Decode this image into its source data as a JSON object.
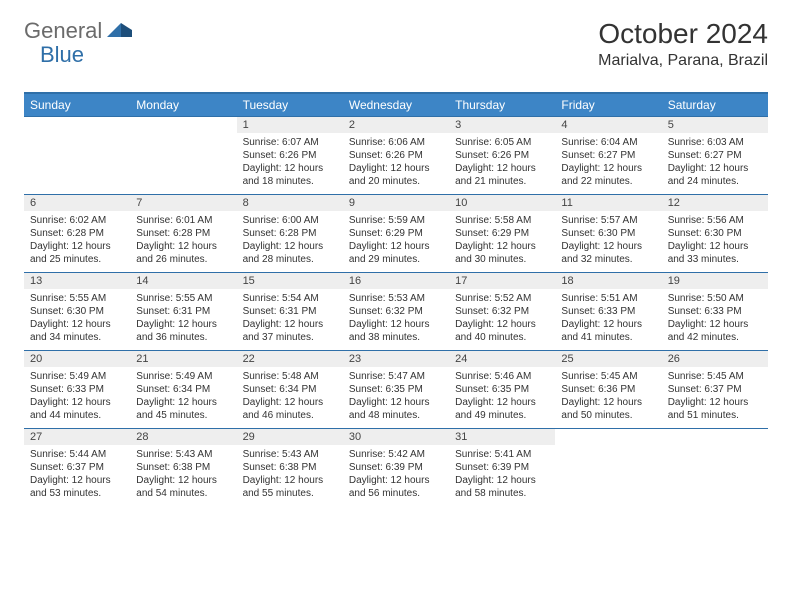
{
  "logo": {
    "general": "General",
    "blue": "Blue"
  },
  "title": "October 2024",
  "location": "Marialva, Parana, Brazil",
  "dayHeaders": [
    "Sunday",
    "Monday",
    "Tuesday",
    "Wednesday",
    "Thursday",
    "Friday",
    "Saturday"
  ],
  "colors": {
    "headerBg": "#3d85c6",
    "headerBorder": "#2f6fa8",
    "dayNumBg": "#eeeeee",
    "text": "#333333"
  },
  "weeks": [
    [
      null,
      null,
      {
        "n": "1",
        "sunrise": "6:07 AM",
        "sunset": "6:26 PM",
        "daylight": "12 hours and 18 minutes."
      },
      {
        "n": "2",
        "sunrise": "6:06 AM",
        "sunset": "6:26 PM",
        "daylight": "12 hours and 20 minutes."
      },
      {
        "n": "3",
        "sunrise": "6:05 AM",
        "sunset": "6:26 PM",
        "daylight": "12 hours and 21 minutes."
      },
      {
        "n": "4",
        "sunrise": "6:04 AM",
        "sunset": "6:27 PM",
        "daylight": "12 hours and 22 minutes."
      },
      {
        "n": "5",
        "sunrise": "6:03 AM",
        "sunset": "6:27 PM",
        "daylight": "12 hours and 24 minutes."
      }
    ],
    [
      {
        "n": "6",
        "sunrise": "6:02 AM",
        "sunset": "6:28 PM",
        "daylight": "12 hours and 25 minutes."
      },
      {
        "n": "7",
        "sunrise": "6:01 AM",
        "sunset": "6:28 PM",
        "daylight": "12 hours and 26 minutes."
      },
      {
        "n": "8",
        "sunrise": "6:00 AM",
        "sunset": "6:28 PM",
        "daylight": "12 hours and 28 minutes."
      },
      {
        "n": "9",
        "sunrise": "5:59 AM",
        "sunset": "6:29 PM",
        "daylight": "12 hours and 29 minutes."
      },
      {
        "n": "10",
        "sunrise": "5:58 AM",
        "sunset": "6:29 PM",
        "daylight": "12 hours and 30 minutes."
      },
      {
        "n": "11",
        "sunrise": "5:57 AM",
        "sunset": "6:30 PM",
        "daylight": "12 hours and 32 minutes."
      },
      {
        "n": "12",
        "sunrise": "5:56 AM",
        "sunset": "6:30 PM",
        "daylight": "12 hours and 33 minutes."
      }
    ],
    [
      {
        "n": "13",
        "sunrise": "5:55 AM",
        "sunset": "6:30 PM",
        "daylight": "12 hours and 34 minutes."
      },
      {
        "n": "14",
        "sunrise": "5:55 AM",
        "sunset": "6:31 PM",
        "daylight": "12 hours and 36 minutes."
      },
      {
        "n": "15",
        "sunrise": "5:54 AM",
        "sunset": "6:31 PM",
        "daylight": "12 hours and 37 minutes."
      },
      {
        "n": "16",
        "sunrise": "5:53 AM",
        "sunset": "6:32 PM",
        "daylight": "12 hours and 38 minutes."
      },
      {
        "n": "17",
        "sunrise": "5:52 AM",
        "sunset": "6:32 PM",
        "daylight": "12 hours and 40 minutes."
      },
      {
        "n": "18",
        "sunrise": "5:51 AM",
        "sunset": "6:33 PM",
        "daylight": "12 hours and 41 minutes."
      },
      {
        "n": "19",
        "sunrise": "5:50 AM",
        "sunset": "6:33 PM",
        "daylight": "12 hours and 42 minutes."
      }
    ],
    [
      {
        "n": "20",
        "sunrise": "5:49 AM",
        "sunset": "6:33 PM",
        "daylight": "12 hours and 44 minutes."
      },
      {
        "n": "21",
        "sunrise": "5:49 AM",
        "sunset": "6:34 PM",
        "daylight": "12 hours and 45 minutes."
      },
      {
        "n": "22",
        "sunrise": "5:48 AM",
        "sunset": "6:34 PM",
        "daylight": "12 hours and 46 minutes."
      },
      {
        "n": "23",
        "sunrise": "5:47 AM",
        "sunset": "6:35 PM",
        "daylight": "12 hours and 48 minutes."
      },
      {
        "n": "24",
        "sunrise": "5:46 AM",
        "sunset": "6:35 PM",
        "daylight": "12 hours and 49 minutes."
      },
      {
        "n": "25",
        "sunrise": "5:45 AM",
        "sunset": "6:36 PM",
        "daylight": "12 hours and 50 minutes."
      },
      {
        "n": "26",
        "sunrise": "5:45 AM",
        "sunset": "6:37 PM",
        "daylight": "12 hours and 51 minutes."
      }
    ],
    [
      {
        "n": "27",
        "sunrise": "5:44 AM",
        "sunset": "6:37 PM",
        "daylight": "12 hours and 53 minutes."
      },
      {
        "n": "28",
        "sunrise": "5:43 AM",
        "sunset": "6:38 PM",
        "daylight": "12 hours and 54 minutes."
      },
      {
        "n": "29",
        "sunrise": "5:43 AM",
        "sunset": "6:38 PM",
        "daylight": "12 hours and 55 minutes."
      },
      {
        "n": "30",
        "sunrise": "5:42 AM",
        "sunset": "6:39 PM",
        "daylight": "12 hours and 56 minutes."
      },
      {
        "n": "31",
        "sunrise": "5:41 AM",
        "sunset": "6:39 PM",
        "daylight": "12 hours and 58 minutes."
      },
      null,
      null
    ]
  ],
  "labels": {
    "sunrise": "Sunrise:",
    "sunset": "Sunset:",
    "daylight": "Daylight:"
  }
}
